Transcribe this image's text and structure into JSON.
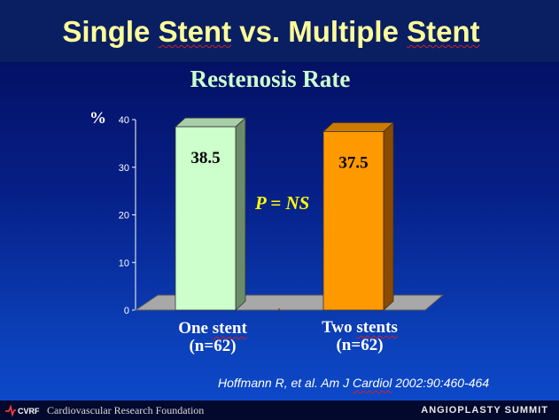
{
  "slide": {
    "title_parts": [
      "Single ",
      "Stent",
      " vs. Multiple ",
      "Stent"
    ],
    "background_color": "#061f86",
    "title_color": "#ffff99"
  },
  "chart_data": {
    "type": "bar",
    "title": "Restenosis Rate",
    "ylabel": "%",
    "ylim": [
      0,
      40
    ],
    "yticks": [
      "0",
      "10",
      "20",
      "30",
      "40"
    ],
    "categories": [
      {
        "line1": "One ",
        "line1_spell": "stent",
        "line2": "(n=62)"
      },
      {
        "line1": "Two ",
        "line1_spell": "stents",
        "line2": "(n=62)"
      }
    ],
    "values": [
      38.5,
      37.5
    ],
    "data_labels": [
      "38.5",
      "37.5"
    ],
    "bar_colors": [
      {
        "front": "#ccffcc",
        "side": "#6a8c6a",
        "top": "#a9cfa9"
      },
      {
        "front": "#ff9900",
        "side": "#8a4a00",
        "top": "#cc7a00"
      }
    ],
    "floor_color": "#a8a8a8",
    "grid": false,
    "annotation": "P = NS"
  },
  "citation": {
    "before": "Hoffmann R, et al. Am J ",
    "spell": "Cardiol",
    "after": " 2002:90:460-464"
  },
  "footer": {
    "logo_text": "CVRF",
    "organization": "Cardiovascular Research Foundation",
    "event": "ANGIOPLASTY SUMMIT"
  }
}
